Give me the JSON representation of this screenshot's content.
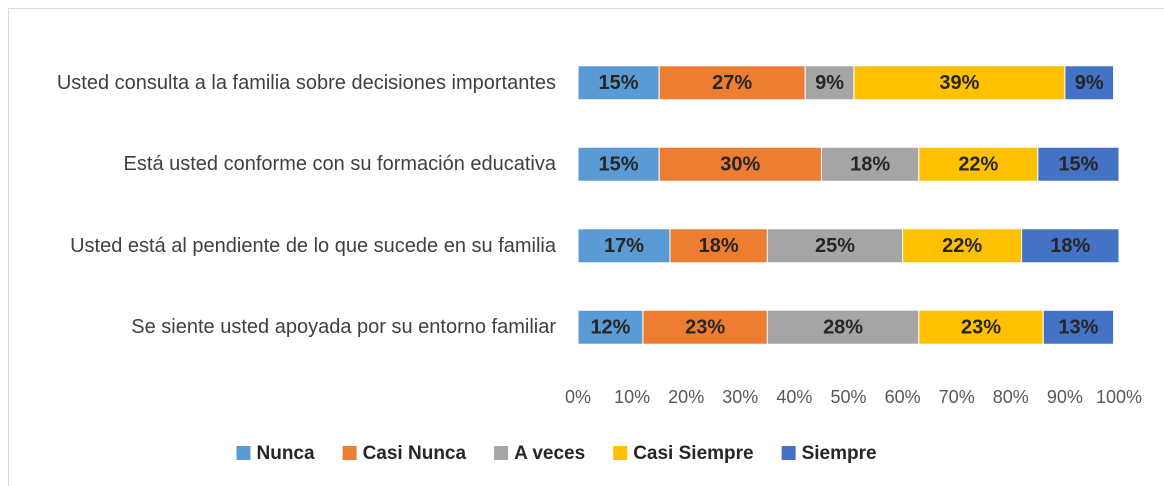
{
  "chart_data": {
    "type": "stacked_bar_horizontal",
    "categories": [
      "Usted consulta a la familia sobre decisiones importantes",
      "Está usted conforme con su formación educativa",
      "Usted está al pendiente de lo que sucede en su familia",
      "Se siente usted apoyada por su entorno familiar"
    ],
    "series": [
      {
        "name": "Nunca",
        "color": "#5b9bd5",
        "values": [
          15,
          15,
          17,
          12
        ],
        "value_labels": [
          "15%",
          "15%",
          "17%",
          "12%"
        ]
      },
      {
        "name": "Casi Nunca",
        "color": "#ed7d31",
        "values": [
          27,
          30,
          18,
          23
        ],
        "value_labels": [
          "27%",
          "30%",
          "18%",
          "23%"
        ]
      },
      {
        "name": "A veces",
        "color": "#a5a5a5",
        "values": [
          9,
          18,
          25,
          28
        ],
        "value_labels": [
          "9%",
          "18%",
          "25%",
          "28%"
        ]
      },
      {
        "name": "Casi Siempre",
        "color": "#ffc000",
        "values": [
          39,
          22,
          22,
          23
        ],
        "value_labels": [
          "39%",
          "22%",
          "22%",
          "23%"
        ]
      },
      {
        "name": "Siempre",
        "color": "#4472c4",
        "values": [
          9,
          15,
          18,
          13
        ],
        "value_labels": [
          "9%",
          "15%",
          "18%",
          "13%"
        ]
      }
    ],
    "xlim": [
      0,
      100
    ],
    "xticks": [
      {
        "value": 0,
        "label": "0%"
      },
      {
        "value": 10,
        "label": "10%"
      },
      {
        "value": 20,
        "label": "20%"
      },
      {
        "value": 30,
        "label": "30%"
      },
      {
        "value": 40,
        "label": "40%"
      },
      {
        "value": 50,
        "label": "50%"
      },
      {
        "value": 60,
        "label": "60%"
      },
      {
        "value": 70,
        "label": "70%"
      },
      {
        "value": 80,
        "label": "80%"
      },
      {
        "value": 90,
        "label": "90%"
      },
      {
        "value": 100,
        "label": "100%"
      }
    ],
    "grid": false,
    "legend": "bottom"
  }
}
